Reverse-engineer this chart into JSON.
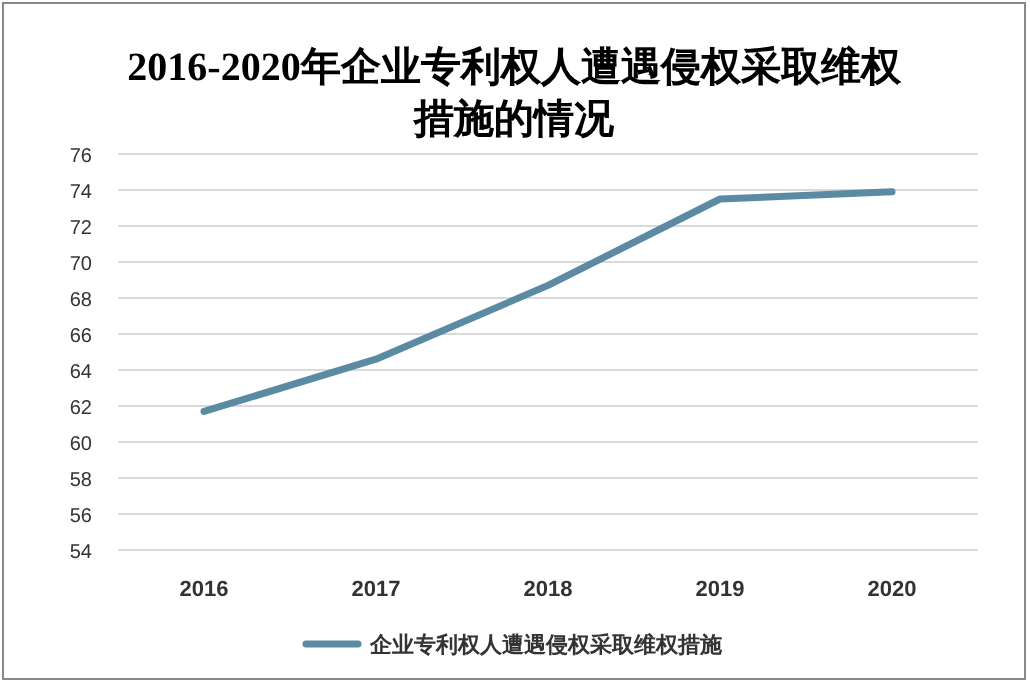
{
  "chart_data": {
    "type": "line",
    "title": "2016-2020年企业专利权人遭遇侵权采取维权措施的情况",
    "categories": [
      "2016",
      "2017",
      "2018",
      "2019",
      "2020"
    ],
    "series": [
      {
        "name": "企业专利权人遭遇侵权采取维权措施",
        "color": "#5b8ba3",
        "values": [
          61.7,
          64.6,
          68.7,
          73.5,
          73.9
        ]
      }
    ],
    "ylim": [
      54,
      76
    ],
    "yticks": [
      54,
      56,
      58,
      60,
      62,
      64,
      66,
      68,
      70,
      72,
      74,
      76
    ],
    "grid": "y",
    "legend": "bottom",
    "marker": "none",
    "line_style": "solid"
  }
}
